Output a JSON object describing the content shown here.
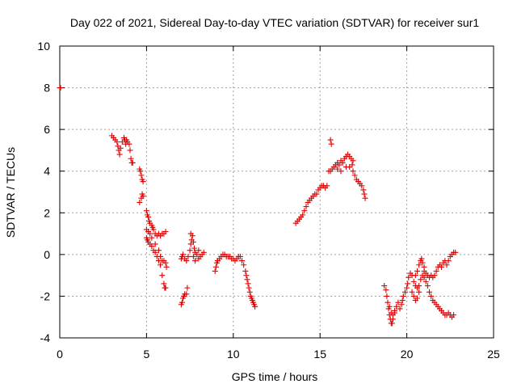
{
  "chart_data": {
    "type": "scatter",
    "title": "Day 022 of 2021, Sidereal Day-to-day VTEC variation (SDTVAR) for receiver sur1",
    "xlabel": "GPS time / hours",
    "ylabel": "SDTVAR / TECUs",
    "xlim": [
      0,
      25
    ],
    "ylim": [
      -4,
      10
    ],
    "xticks": [
      0,
      5,
      10,
      15,
      20,
      25
    ],
    "yticks": [
      -4,
      -2,
      0,
      2,
      4,
      6,
      8,
      10
    ],
    "x_tick_labels": [
      "0",
      "5",
      "10",
      "15",
      "20",
      "25"
    ],
    "y_tick_labels": [
      "-4",
      "-2",
      "0",
      "2",
      "4",
      "6",
      "8",
      "10"
    ],
    "grid": true,
    "marker": "plus",
    "color": "#e00000",
    "series": [
      {
        "name": "sur1",
        "points": [
          [
            0.0,
            8.0
          ],
          [
            0.05,
            8.0
          ],
          [
            3.0,
            5.7
          ],
          [
            3.1,
            5.6
          ],
          [
            3.2,
            5.5
          ],
          [
            3.3,
            5.4
          ],
          [
            3.35,
            5.2
          ],
          [
            3.4,
            5.0
          ],
          [
            3.45,
            4.8
          ],
          [
            3.5,
            5.1
          ],
          [
            3.6,
            5.4
          ],
          [
            3.7,
            5.6
          ],
          [
            3.75,
            5.5
          ],
          [
            3.8,
            5.3
          ],
          [
            3.85,
            5.5
          ],
          [
            3.9,
            5.4
          ],
          [
            4.0,
            5.3
          ],
          [
            4.05,
            5.0
          ],
          [
            4.1,
            4.6
          ],
          [
            4.15,
            4.4
          ],
          [
            4.2,
            4.4
          ],
          [
            4.6,
            4.1
          ],
          [
            4.65,
            4.0
          ],
          [
            4.7,
            3.8
          ],
          [
            4.75,
            3.6
          ],
          [
            4.8,
            3.5
          ],
          [
            4.6,
            2.5
          ],
          [
            4.7,
            2.7
          ],
          [
            4.75,
            2.9
          ],
          [
            4.8,
            2.8
          ],
          [
            5.0,
            2.1
          ],
          [
            5.05,
            1.9
          ],
          [
            5.1,
            1.8
          ],
          [
            5.15,
            1.6
          ],
          [
            5.2,
            1.5
          ],
          [
            5.3,
            1.4
          ],
          [
            5.35,
            1.3
          ],
          [
            5.4,
            1.2
          ],
          [
            5.5,
            1.0
          ],
          [
            5.6,
            0.9
          ],
          [
            5.7,
            1.0
          ],
          [
            5.8,
            0.9
          ],
          [
            5.9,
            1.0
          ],
          [
            6.0,
            1.0
          ],
          [
            6.1,
            1.1
          ],
          [
            5.0,
            1.2
          ],
          [
            5.1,
            1.1
          ],
          [
            5.2,
            1.0
          ],
          [
            5.3,
            0.8
          ],
          [
            5.5,
            0.5
          ],
          [
            5.7,
            0.2
          ],
          [
            5.8,
            -0.1
          ],
          [
            5.9,
            -0.3
          ],
          [
            6.0,
            -0.3
          ],
          [
            6.1,
            -0.4
          ],
          [
            6.15,
            -0.6
          ],
          [
            5.0,
            0.8
          ],
          [
            5.05,
            0.7
          ],
          [
            5.1,
            0.6
          ],
          [
            5.2,
            0.5
          ],
          [
            5.3,
            0.4
          ],
          [
            5.4,
            0.2
          ],
          [
            5.5,
            0.1
          ],
          [
            5.6,
            -0.1
          ],
          [
            5.7,
            -0.3
          ],
          [
            5.8,
            -0.5
          ],
          [
            5.9,
            -1.0
          ],
          [
            6.0,
            -1.4
          ],
          [
            6.05,
            -1.6
          ],
          [
            6.1,
            -1.6
          ],
          [
            7.0,
            -2.4
          ],
          [
            7.05,
            -2.3
          ],
          [
            7.1,
            -2.1
          ],
          [
            7.15,
            -2.0
          ],
          [
            7.2,
            -1.9
          ],
          [
            7.3,
            -1.9
          ],
          [
            7.35,
            -1.6
          ],
          [
            7.0,
            -0.2
          ],
          [
            7.05,
            -0.1
          ],
          [
            7.1,
            0.0
          ],
          [
            7.2,
            -0.2
          ],
          [
            7.3,
            -0.3
          ],
          [
            7.4,
            -0.1
          ],
          [
            7.5,
            0.2
          ],
          [
            7.55,
            0.5
          ],
          [
            7.6,
            0.7
          ],
          [
            7.65,
            0.9
          ],
          [
            7.55,
            1.0
          ],
          [
            7.7,
            0.6
          ],
          [
            7.75,
            0.3
          ],
          [
            7.8,
            0.1
          ],
          [
            7.9,
            0.0
          ],
          [
            8.0,
            0.2
          ],
          [
            8.1,
            -0.1
          ],
          [
            8.2,
            0.0
          ],
          [
            8.3,
            0.1
          ],
          [
            7.7,
            -0.1
          ],
          [
            7.8,
            -0.3
          ],
          [
            8.0,
            -0.2
          ],
          [
            8.95,
            -0.8
          ],
          [
            9.0,
            -0.6
          ],
          [
            9.05,
            -0.4
          ],
          [
            9.1,
            -0.3
          ],
          [
            9.2,
            -0.2
          ],
          [
            9.3,
            -0.1
          ],
          [
            9.4,
            0.0
          ],
          [
            9.5,
            0.0
          ],
          [
            9.6,
            -0.1
          ],
          [
            9.7,
            -0.1
          ],
          [
            9.8,
            -0.1
          ],
          [
            9.9,
            -0.2
          ],
          [
            10.0,
            -0.2
          ],
          [
            10.1,
            -0.3
          ],
          [
            10.2,
            -0.2
          ],
          [
            10.3,
            -0.1
          ],
          [
            10.4,
            -0.1
          ],
          [
            10.5,
            -0.3
          ],
          [
            10.6,
            -0.5
          ],
          [
            10.7,
            -0.8
          ],
          [
            10.75,
            -1.0
          ],
          [
            10.8,
            -1.2
          ],
          [
            10.85,
            -1.4
          ],
          [
            10.9,
            -1.6
          ],
          [
            10.95,
            -1.8
          ],
          [
            11.0,
            -2.0
          ],
          [
            11.05,
            -2.1
          ],
          [
            11.1,
            -2.2
          ],
          [
            11.15,
            -2.3
          ],
          [
            11.2,
            -2.4
          ],
          [
            11.25,
            -2.5
          ],
          [
            13.6,
            1.5
          ],
          [
            13.7,
            1.6
          ],
          [
            13.8,
            1.7
          ],
          [
            13.9,
            1.8
          ],
          [
            14.0,
            1.9
          ],
          [
            14.1,
            2.1
          ],
          [
            14.2,
            2.3
          ],
          [
            14.3,
            2.5
          ],
          [
            14.4,
            2.6
          ],
          [
            14.5,
            2.7
          ],
          [
            14.6,
            2.8
          ],
          [
            14.7,
            2.9
          ],
          [
            14.8,
            2.9
          ],
          [
            14.9,
            3.1
          ],
          [
            15.0,
            3.2
          ],
          [
            15.1,
            3.3
          ],
          [
            15.2,
            3.3
          ],
          [
            15.3,
            3.2
          ],
          [
            15.4,
            3.3
          ],
          [
            15.6,
            5.5
          ],
          [
            15.65,
            5.3
          ],
          [
            15.5,
            4.0
          ],
          [
            15.6,
            4.0
          ],
          [
            15.7,
            4.1
          ],
          [
            15.8,
            4.2
          ],
          [
            15.9,
            4.3
          ],
          [
            16.0,
            4.4
          ],
          [
            16.1,
            4.3
          ],
          [
            16.2,
            4.5
          ],
          [
            16.3,
            4.4
          ],
          [
            16.4,
            4.6
          ],
          [
            16.5,
            4.7
          ],
          [
            16.6,
            4.8
          ],
          [
            16.7,
            4.7
          ],
          [
            16.8,
            4.6
          ],
          [
            16.85,
            4.3
          ],
          [
            16.9,
            4.0
          ],
          [
            17.0,
            3.8
          ],
          [
            17.1,
            3.6
          ],
          [
            17.2,
            3.5
          ],
          [
            17.3,
            3.4
          ],
          [
            17.4,
            3.3
          ],
          [
            17.5,
            3.1
          ],
          [
            17.55,
            2.9
          ],
          [
            17.6,
            2.7
          ],
          [
            16.0,
            4.1
          ],
          [
            16.2,
            4.0
          ],
          [
            16.5,
            4.2
          ],
          [
            16.7,
            4.2
          ],
          [
            16.9,
            4.5
          ],
          [
            18.7,
            -1.5
          ],
          [
            18.8,
            -1.7
          ],
          [
            18.85,
            -2.0
          ],
          [
            18.9,
            -2.3
          ],
          [
            18.95,
            -2.6
          ],
          [
            19.0,
            -2.9
          ],
          [
            19.05,
            -3.1
          ],
          [
            19.1,
            -3.3
          ],
          [
            19.15,
            -3.3
          ],
          [
            19.2,
            -3.1
          ],
          [
            19.3,
            -2.8
          ],
          [
            19.4,
            -2.5
          ],
          [
            19.5,
            -2.3
          ],
          [
            19.0,
            -2.5
          ],
          [
            19.1,
            -2.8
          ],
          [
            19.2,
            -2.9
          ],
          [
            19.3,
            -2.7
          ],
          [
            19.6,
            -2.6
          ],
          [
            19.7,
            -2.4
          ],
          [
            19.75,
            -2.2
          ],
          [
            19.8,
            -2.0
          ],
          [
            19.9,
            -1.8
          ],
          [
            20.0,
            -1.6
          ],
          [
            20.05,
            -1.4
          ],
          [
            20.1,
            -1.1
          ],
          [
            20.2,
            -0.9
          ],
          [
            20.3,
            -1.0
          ],
          [
            20.4,
            -1.3
          ],
          [
            20.5,
            -1.5
          ],
          [
            20.6,
            -1.6
          ],
          [
            20.7,
            -1.5
          ],
          [
            20.8,
            -1.2
          ],
          [
            20.9,
            -1.0
          ],
          [
            21.0,
            -0.8
          ],
          [
            20.5,
            -1.0
          ],
          [
            20.6,
            -0.8
          ],
          [
            20.7,
            -0.5
          ],
          [
            20.8,
            -0.3
          ],
          [
            20.85,
            -0.2
          ],
          [
            20.9,
            -0.4
          ],
          [
            21.0,
            -0.6
          ],
          [
            21.1,
            -0.9
          ],
          [
            21.2,
            -1.0
          ],
          [
            21.3,
            -1.1
          ],
          [
            21.4,
            -1.0
          ],
          [
            21.5,
            -1.1
          ],
          [
            21.6,
            -1.0
          ],
          [
            21.7,
            -0.8
          ],
          [
            21.8,
            -0.6
          ],
          [
            21.9,
            -0.5
          ],
          [
            22.0,
            -0.6
          ],
          [
            22.1,
            -0.4
          ],
          [
            22.2,
            -0.3
          ],
          [
            22.3,
            -0.5
          ],
          [
            22.4,
            -0.3
          ],
          [
            22.5,
            -0.1
          ],
          [
            22.6,
            0.0
          ],
          [
            22.7,
            0.1
          ],
          [
            22.8,
            0.1
          ],
          [
            21.0,
            -1.1
          ],
          [
            21.1,
            -1.3
          ],
          [
            21.2,
            -1.5
          ],
          [
            21.3,
            -1.8
          ],
          [
            21.4,
            -2.0
          ],
          [
            21.5,
            -2.2
          ],
          [
            21.6,
            -2.3
          ],
          [
            21.7,
            -2.4
          ],
          [
            21.8,
            -2.5
          ],
          [
            21.9,
            -2.6
          ],
          [
            22.0,
            -2.7
          ],
          [
            22.1,
            -2.8
          ],
          [
            22.2,
            -2.9
          ],
          [
            22.3,
            -2.9
          ],
          [
            22.4,
            -2.8
          ],
          [
            22.5,
            -2.9
          ],
          [
            22.6,
            -3.0
          ],
          [
            22.7,
            -2.9
          ],
          [
            20.3,
            -1.8
          ],
          [
            20.4,
            -2.0
          ],
          [
            20.5,
            -2.2
          ],
          [
            20.6,
            -2.1
          ],
          [
            20.7,
            -1.8
          ]
        ]
      }
    ]
  }
}
